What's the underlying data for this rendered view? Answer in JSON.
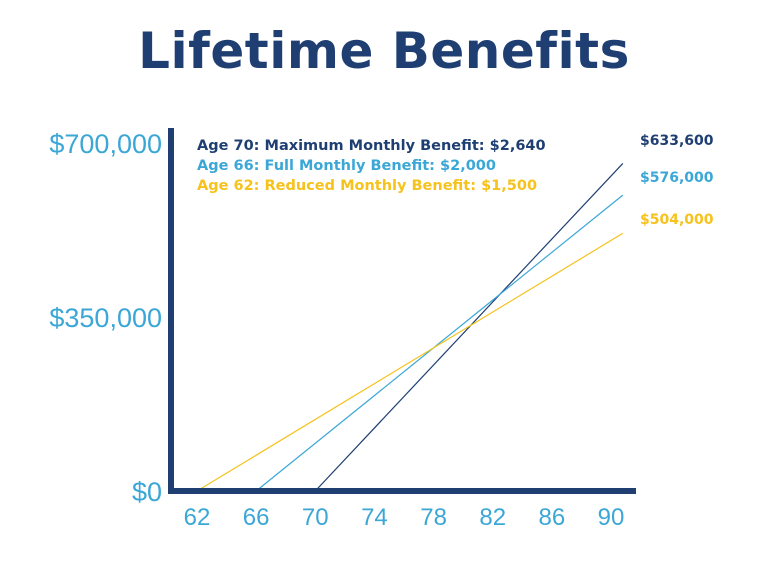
{
  "title": "Lifetime Benefits",
  "colors": {
    "axis": "#1f3f73",
    "tick_text": "#3ba7d6",
    "age70": "#1f3f73",
    "age66": "#3ba7d6",
    "age62": "#f6c21b"
  },
  "chart_data": {
    "type": "line",
    "title": "Lifetime Benefits",
    "xlabel": "",
    "ylabel": "",
    "xlim": [
      62,
      90
    ],
    "ylim": [
      0,
      700000
    ],
    "x_ticks": [
      "62",
      "66",
      "70",
      "74",
      "78",
      "82",
      "86",
      "90"
    ],
    "x_tick_values": [
      62,
      66,
      70,
      74,
      78,
      82,
      86,
      90
    ],
    "y_ticks": [
      "$0",
      "$350,000",
      "$700,000"
    ],
    "y_tick_values": [
      0,
      350000,
      700000
    ],
    "grid": false,
    "legend_position": "top-left",
    "series": [
      {
        "name": "Age 70: Maximum Monthly Benefit: $2,640",
        "color": "#1f3f73",
        "points": [
          [
            70,
            0
          ],
          [
            90,
            633600
          ]
        ],
        "end_label": "$633,600"
      },
      {
        "name": "Age 66: Full Monthly Benefit: $2,000",
        "color": "#3ba7d6",
        "points": [
          [
            66,
            0
          ],
          [
            90,
            576000
          ]
        ],
        "end_label": "$576,000"
      },
      {
        "name": "Age 62: Reduced Monthly Benefit: $1,500",
        "color": "#f6c21b",
        "points": [
          [
            62,
            0
          ],
          [
            90,
            504000
          ]
        ],
        "end_label": "$504,000"
      }
    ]
  }
}
